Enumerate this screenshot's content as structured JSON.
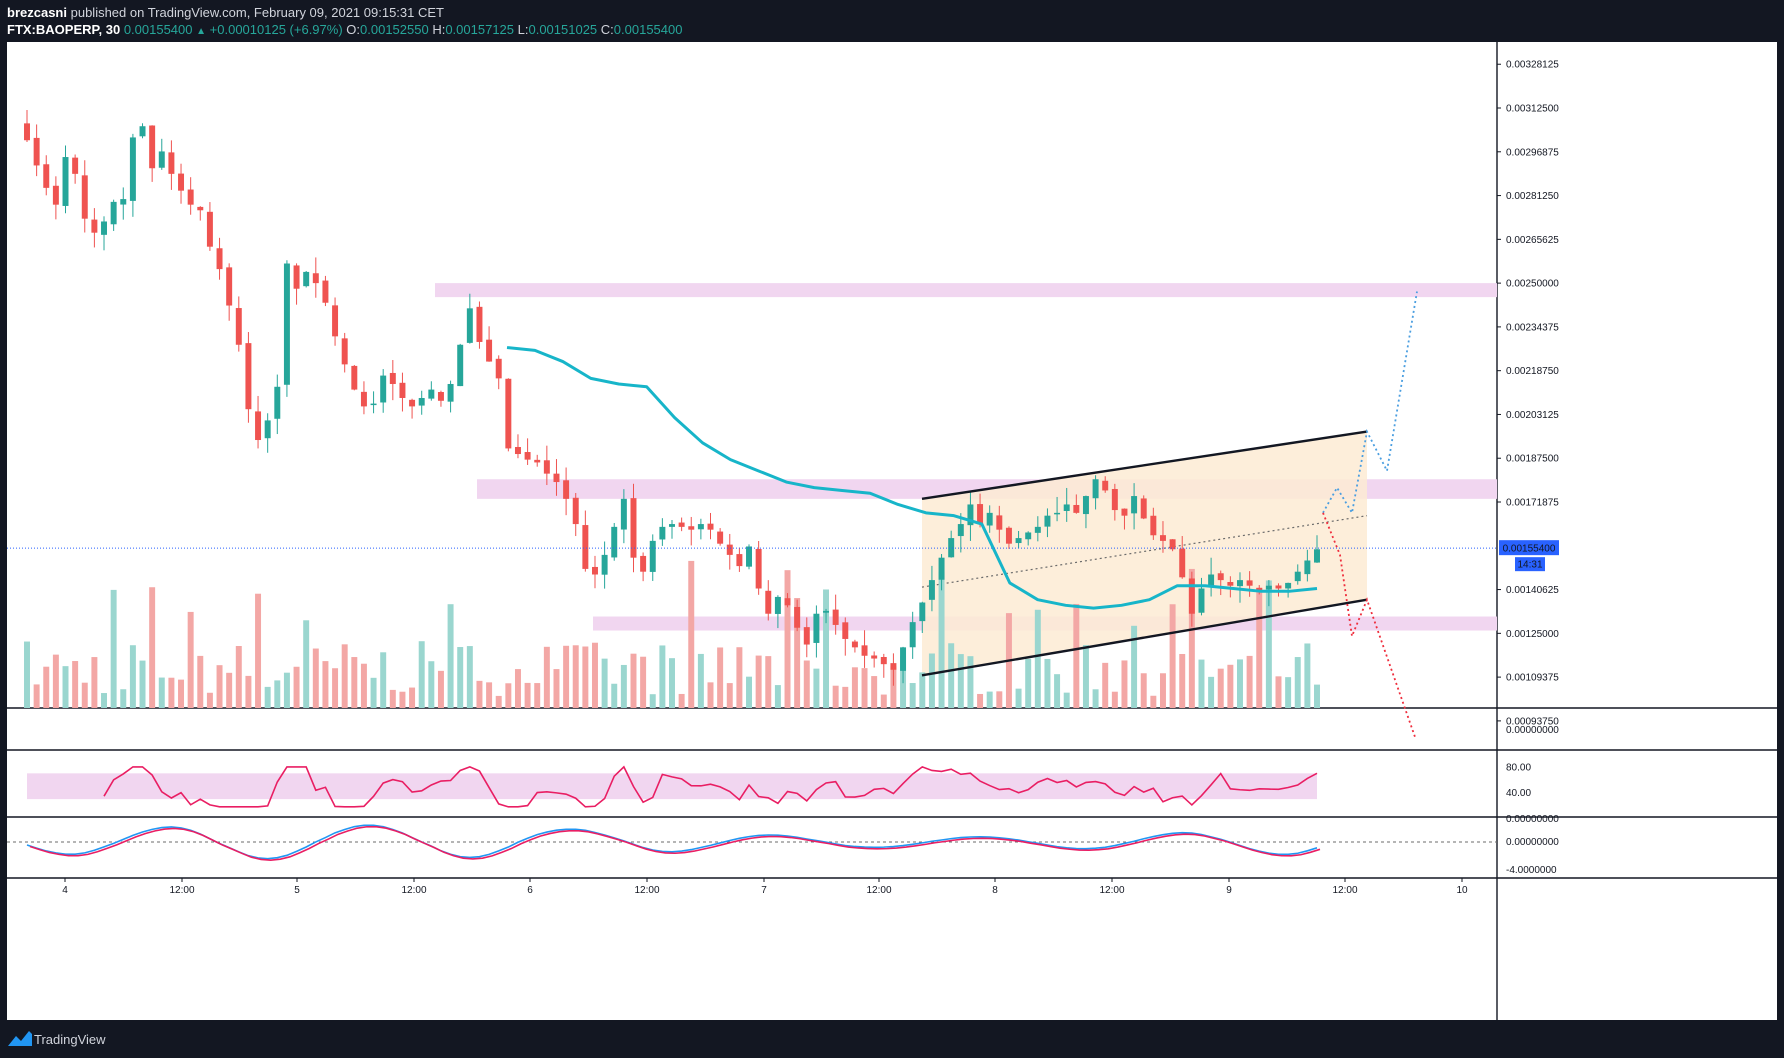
{
  "header": {
    "publisher": "brezcasni",
    "published_text": "published on TradingView.com, February 09, 2021 09:15:31 CET",
    "symbol": "FTX:BAOPERP, 30",
    "last": "0.00155400",
    "change": "+0.00010125 (+6.97%)",
    "open_label": "O:",
    "open": "0.00152550",
    "high_label": "H:",
    "high": "0.00157125",
    "low_label": "L:",
    "low": "0.00151025",
    "close_label": "C:",
    "close": "0.00155400"
  },
  "footer": {
    "brand": "TradingView"
  },
  "colors": {
    "up": "#26a69a",
    "down": "#ef5350",
    "vol_up": "#9ad6cf",
    "vol_down": "#f3a7a5",
    "vwap": "#17b5c9",
    "zone": "#f1d6f0",
    "channel": "#fdebd4",
    "rsi": "#e91e63",
    "stoch_k": "#2196f3",
    "stoch_d": "#e91e63",
    "proj_up": "#4a9ee0",
    "proj_down": "#ef2d3c",
    "last_price": "#2962ff"
  },
  "chart_data": {
    "type": "candlestick",
    "title": "FTX:BAOPERP, 30",
    "price_axis_ticks": [
      "0.00328125",
      "0.00312500",
      "0.00296875",
      "0.00281250",
      "0.00265625",
      "0.00250000",
      "0.00234375",
      "0.00218750",
      "0.00203125",
      "0.00187500",
      "0.00171875",
      "0.00140625",
      "0.00125000",
      "0.00109375",
      "0.00093750"
    ],
    "last_price_label": "0.00155400",
    "countdown_label": "14:31",
    "time_axis_labels": [
      "4",
      "12:00",
      "5",
      "12:00",
      "6",
      "12:00",
      "7",
      "12:00",
      "8",
      "12:00",
      "9",
      "12:00",
      "10"
    ],
    "volume_pane_tick": "0.00000000",
    "rsi_ticks": [
      "80.00",
      "40.00"
    ],
    "stoch_ticks": [
      "0.00000000",
      "0.00000000",
      "-4.0000000"
    ],
    "resistance_zones": [
      [
        0.00245,
        0.0025
      ],
      [
        0.00173,
        0.0018
      ],
      [
        0.00126,
        0.00131
      ]
    ],
    "channel": {
      "upper": [
        [
          "Feb 7 14:00",
          0.00173
        ],
        [
          "Feb 9 17:00",
          0.00197
        ]
      ],
      "lower": [
        [
          "Feb 7 14:00",
          0.0011
        ],
        [
          "Feb 9 17:00",
          0.00137
        ]
      ]
    },
    "projection_up": [
      0.00168,
      0.00177,
      0.00168,
      0.00197,
      0.00183,
      0.00247
    ],
    "projection_down": [
      0.00168,
      0.00153,
      0.00124,
      0.00137,
      0.00088
    ],
    "vwap": [
      0.00227,
      0.00226,
      0.00222,
      0.00216,
      0.00214,
      0.00213,
      0.00202,
      0.00193,
      0.00187,
      0.00183,
      0.00179,
      0.00177,
      0.00176,
      0.00175,
      0.00171,
      0.00168,
      0.00167,
      0.00164,
      0.00143,
      0.00137,
      0.00135,
      0.00134,
      0.00135,
      0.00137,
      0.00142,
      0.00142,
      0.00141,
      0.0014,
      0.0014,
      0.00141
    ],
    "closes": [
      0.00301,
      0.00292,
      0.00284,
      0.00278,
      0.00295,
      0.00289,
      0.00273,
      0.00268,
      0.00272,
      0.00279,
      0.0028,
      0.00302,
      0.00306,
      0.00291,
      0.00297,
      0.00289,
      0.00283,
      0.00278,
      0.00276,
      0.00263,
      0.00255,
      0.00242,
      0.00228,
      0.00205,
      0.00194,
      0.00201,
      0.00213,
      0.00257,
      0.00248,
      0.00254,
      0.0025,
      0.00243,
      0.00231,
      0.00221,
      0.00212,
      0.00206,
      0.00207,
      0.00217,
      0.00214,
      0.00209,
      0.00206,
      0.00209,
      0.00212,
      0.00208,
      0.00214,
      0.00228,
      0.00241,
      0.00229,
      0.00222,
      0.00216,
      0.00191,
      0.00189,
      0.00187,
      0.00186,
      0.00182,
      0.00179,
      0.00173,
      0.00164,
      0.00148,
      0.00146,
      0.00153,
      0.00163,
      0.00173,
      0.00152,
      0.00147,
      0.00158,
      0.00163,
      0.00164,
      0.00163,
      0.00162,
      0.00164,
      0.00162,
      0.00157,
      0.00153,
      0.00149,
      0.00156,
      0.00141,
      0.00132,
      0.00138,
      0.00135,
      0.00127,
      0.00121,
      0.00132,
      0.00133,
      0.00128,
      0.00123,
      0.0012,
      0.00117,
      0.00116,
      0.00114,
      0.00112,
      0.0012,
      0.00129,
      0.00136,
      0.00144,
      0.00152,
      0.00159,
      0.00164,
      0.00171,
      0.00164,
      0.00168,
      0.00162,
      0.00157,
      0.00159,
      0.00161,
      0.00163,
      0.00167,
      0.00168,
      0.00171,
      0.00168,
      0.00174,
      0.0018,
      0.00176,
      0.00169,
      0.00167,
      0.00174,
      0.00166,
      0.0016,
      0.00158,
      0.00155,
      0.00145,
      0.00132,
      0.00141,
      0.00146,
      0.00144,
      0.00142,
      0.00144,
      0.00142,
      0.0014,
      0.00142,
      0.00141,
      0.00143,
      0.00147,
      0.00151,
      0.00155
    ]
  }
}
